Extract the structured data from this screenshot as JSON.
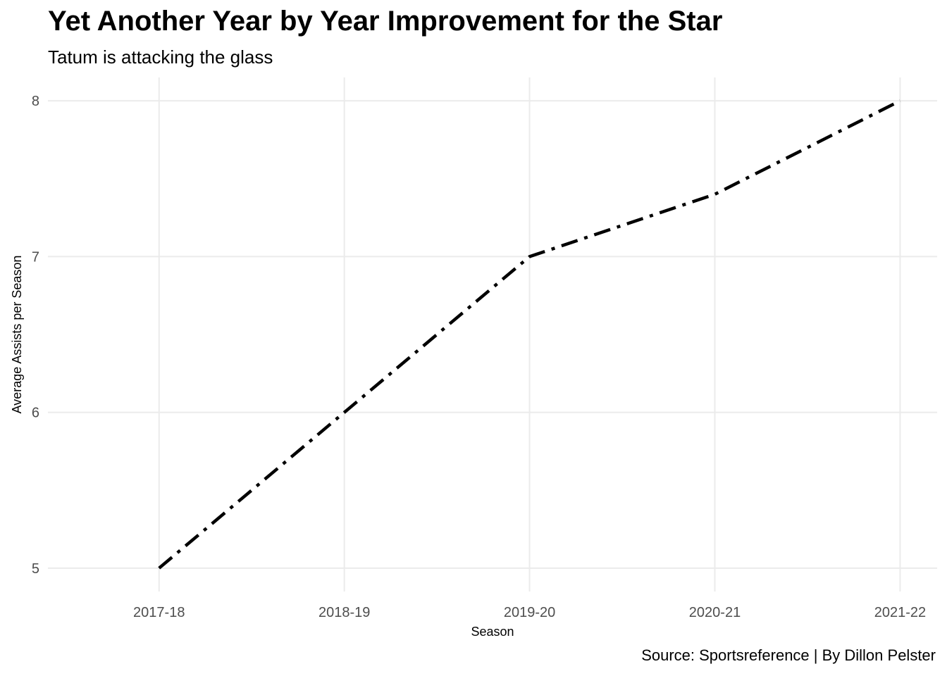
{
  "title": "Yet Another Year by Year Improvement for the Star",
  "subtitle": "Tatum is attacking the glass",
  "caption": "Source: Sportsreference | By Dillon Pelster",
  "chart_data": {
    "type": "line",
    "categories": [
      "2017-18",
      "2018-19",
      "2019-20",
      "2020-21",
      "2021-22"
    ],
    "series": [
      {
        "values": [
          5,
          6,
          7,
          7.4,
          8
        ]
      }
    ],
    "xlabel": "Season",
    "ylabel": "Average Assists per Season",
    "ylim": [
      4.85,
      8.15
    ],
    "yticks": [
      5,
      6,
      7,
      8
    ],
    "grid": true,
    "line_style": "dashed-dotted",
    "colors": {
      "line": "#000000",
      "grid": "#ebebeb",
      "tick_text": "#4d4d4d"
    }
  }
}
